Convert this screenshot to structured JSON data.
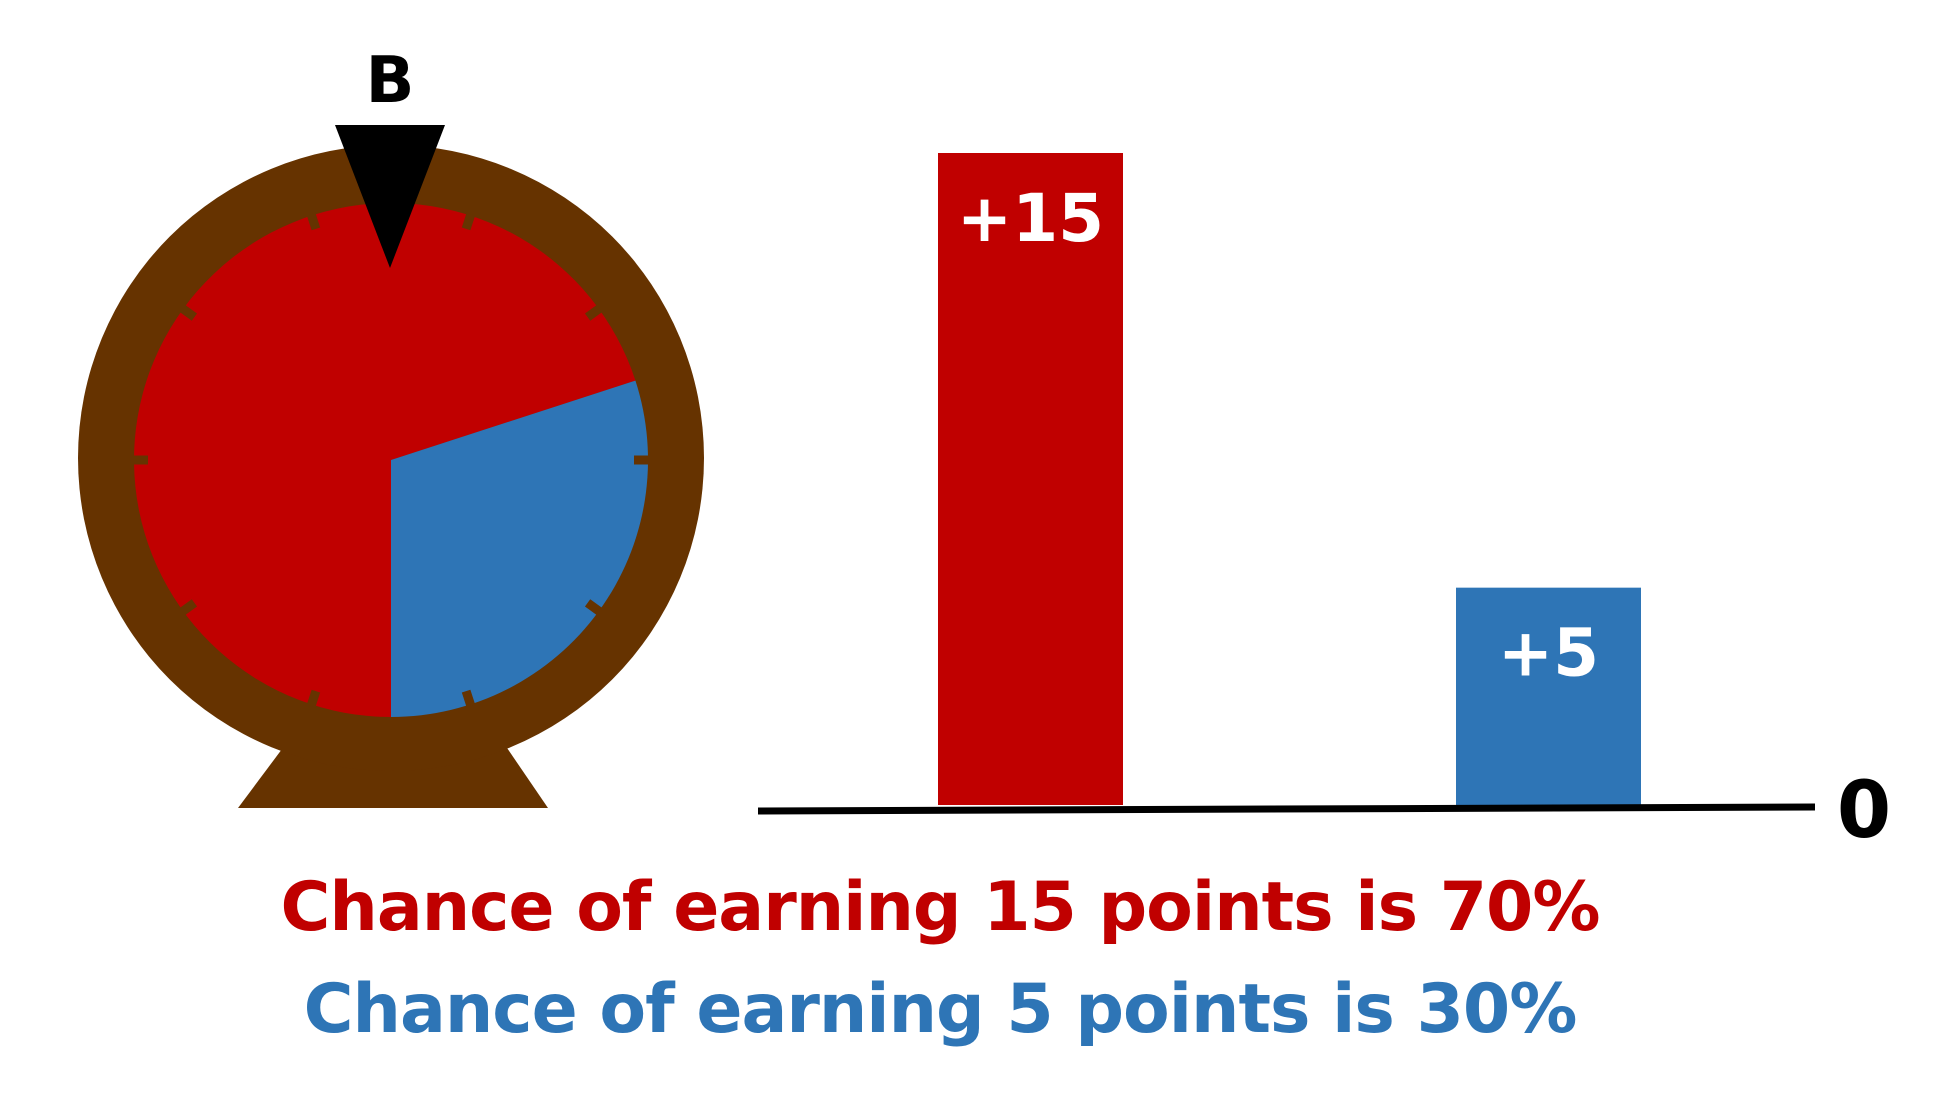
{
  "wheel": {
    "label": "B",
    "segments": [
      {
        "name": "15 points",
        "percent": 70,
        "color": "#c00000"
      },
      {
        "name": "5 points",
        "percent": 30,
        "color": "#2e75b6"
      }
    ],
    "rim_color": "#663300",
    "pointer_color": "#000000"
  },
  "chart_data": {
    "type": "bar",
    "categories": [
      "",
      ""
    ],
    "values": [
      15,
      5
    ],
    "labels": [
      "+15",
      "+5"
    ],
    "colors": [
      "#c00000",
      "#2e75b6"
    ],
    "baseline_label": "0",
    "ylim": [
      0,
      15
    ]
  },
  "captions": [
    {
      "text": "Chance of earning 15 points is 70%",
      "color": "#c00000"
    },
    {
      "text": "Chance of earning 5 points is 30%",
      "color": "#2e75b6"
    }
  ]
}
